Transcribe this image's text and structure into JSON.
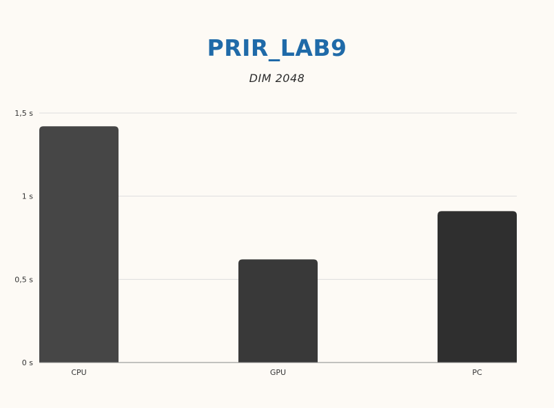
{
  "chart_data": {
    "type": "bar",
    "title": "PRIR_LAB9",
    "subtitle": "DIM 2048",
    "xlabel": "",
    "ylabel": "",
    "categories": [
      "CPU",
      "GPU",
      "PC"
    ],
    "values": [
      1.42,
      0.62,
      0.91
    ],
    "bar_colors": [
      "#464646",
      "#393939",
      "#2f2f2f"
    ],
    "ylim": [
      0,
      1.5
    ],
    "y_ticks": [
      {
        "value": 0,
        "label": "0 s"
      },
      {
        "value": 0.5,
        "label": "0,5 s"
      },
      {
        "value": 1,
        "label": "1 s"
      },
      {
        "value": 1.5,
        "label": "1,5 s"
      }
    ],
    "grid": true,
    "legend": "none"
  },
  "colors": {
    "background": "#fdfaf5",
    "title": "#1f6aa8",
    "grid": "#dddddd",
    "axis": "#888888"
  }
}
